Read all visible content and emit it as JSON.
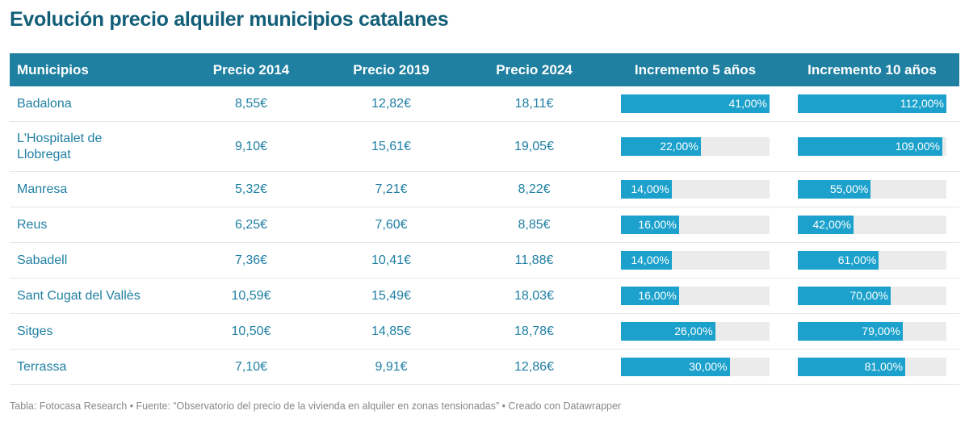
{
  "title": "Evolución precio alquiler municipios catalanes",
  "headers": [
    "Municipios",
    "Precio 2014",
    "Precio 2019",
    "Precio 2024",
    "Incremento 5 años",
    "Incremento 10 años"
  ],
  "colors": {
    "header": "#1f80a1",
    "bar": "#1ba1cc",
    "bar_bg": "#ebebeb",
    "text": "#1f7fa3"
  },
  "rows": [
    {
      "name": "Badalona",
      "p2014": "8,55€",
      "p2019": "12,82€",
      "p2024": "18,11€",
      "inc5": 41,
      "inc5_label": "41,00%",
      "inc10": 112,
      "inc10_label": "112,00%"
    },
    {
      "name": "L'Hospitalet de Llobregat",
      "p2014": "9,10€",
      "p2019": "15,61€",
      "p2024": "19,05€",
      "inc5": 22,
      "inc5_label": "22,00%",
      "inc10": 109,
      "inc10_label": "109,00%"
    },
    {
      "name": "Manresa",
      "p2014": "5,32€",
      "p2019": "7,21€",
      "p2024": "8,22€",
      "inc5": 14,
      "inc5_label": "14,00%",
      "inc10": 55,
      "inc10_label": "55,00%"
    },
    {
      "name": "Reus",
      "p2014": "6,25€",
      "p2019": "7,60€",
      "p2024": "8,85€",
      "inc5": 16,
      "inc5_label": "16,00%",
      "inc10": 42,
      "inc10_label": "42,00%"
    },
    {
      "name": "Sabadell",
      "p2014": "7,36€",
      "p2019": "10,41€",
      "p2024": "11,88€",
      "inc5": 14,
      "inc5_label": "14,00%",
      "inc10": 61,
      "inc10_label": "61,00%"
    },
    {
      "name": "Sant Cugat del Vallès",
      "p2014": "10,59€",
      "p2019": "15,49€",
      "p2024": "18,03€",
      "inc5": 16,
      "inc5_label": "16,00%",
      "inc10": 70,
      "inc10_label": "70,00%"
    },
    {
      "name": "Sitges",
      "p2014": "10,50€",
      "p2019": "14,85€",
      "p2024": "18,78€",
      "inc5": 26,
      "inc5_label": "26,00%",
      "inc10": 79,
      "inc10_label": "79,00%"
    },
    {
      "name": "Terrassa",
      "p2014": "7,10€",
      "p2019": "9,91€",
      "p2024": "12,86€",
      "inc5": 30,
      "inc5_label": "30,00%",
      "inc10": 81,
      "inc10_label": "81,00%"
    }
  ],
  "footer": "Tabla: Fotocasa Research • Fuente: “Observatorio del precio de la vivienda en alquiler en zonas tensionadas” • Creado con Datawrapper"
}
